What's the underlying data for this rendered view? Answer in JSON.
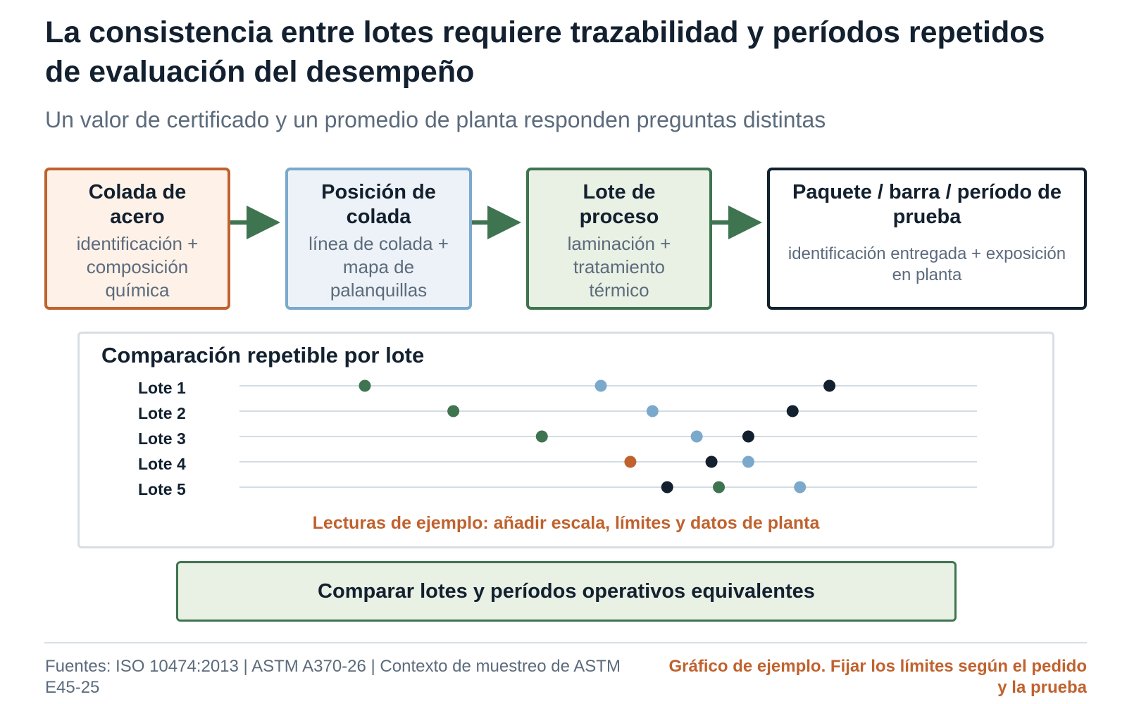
{
  "title": "La consistencia entre lotes requiere trazabilidad y períodos repetidos de evaluación del desempeño",
  "subtitle": "Un valor de certificado y un promedio de planta responden preguntas distintas",
  "colors": {
    "orange": "#c0622e",
    "blue": "#7ba9cc",
    "green": "#3f7450",
    "navy": "#12202f",
    "gray": "#5c6b7c"
  },
  "stages": [
    {
      "head": "Colada de acero",
      "desc": "identificación + composición química"
    },
    {
      "head": "Posición de colada",
      "desc": "línea de colada + mapa de palanquillas"
    },
    {
      "head": "Lote de proceso",
      "desc": "laminación + tratamiento térmico"
    },
    {
      "head": "Paquete / barra / período de prueba",
      "desc": "identificación entregada + exposición en planta"
    }
  ],
  "panel": {
    "title": "Comparación repetible por lote",
    "note": "Lecturas de ejemplo: añadir escala, límites y datos de planta"
  },
  "chart_data": {
    "type": "scatter",
    "title": "Comparación repetible por lote",
    "categories": [
      "Lote 1",
      "Lote 2",
      "Lote 3",
      "Lote 4",
      "Lote 5"
    ],
    "xlim": [
      0,
      100
    ],
    "marker_colors": [
      "green",
      "blue",
      "navy",
      "orange"
    ],
    "points": [
      {
        "lot": "Lote 1",
        "x": 17,
        "color": "green"
      },
      {
        "lot": "Lote 1",
        "x": 49,
        "color": "blue"
      },
      {
        "lot": "Lote 1",
        "x": 80,
        "color": "navy"
      },
      {
        "lot": "Lote 2",
        "x": 29,
        "color": "green"
      },
      {
        "lot": "Lote 2",
        "x": 56,
        "color": "blue"
      },
      {
        "lot": "Lote 2",
        "x": 75,
        "color": "navy"
      },
      {
        "lot": "Lote 3",
        "x": 41,
        "color": "green"
      },
      {
        "lot": "Lote 3",
        "x": 62,
        "color": "blue"
      },
      {
        "lot": "Lote 3",
        "x": 69,
        "color": "navy"
      },
      {
        "lot": "Lote 4",
        "x": 53,
        "color": "orange"
      },
      {
        "lot": "Lote 4",
        "x": 64,
        "color": "navy"
      },
      {
        "lot": "Lote 4",
        "x": 69,
        "color": "blue"
      },
      {
        "lot": "Lote 5",
        "x": 58,
        "color": "navy"
      },
      {
        "lot": "Lote 5",
        "x": 65,
        "color": "green"
      },
      {
        "lot": "Lote 5",
        "x": 76,
        "color": "blue"
      }
    ],
    "grid": true
  },
  "cta": "Comparar lotes y períodos operativos equivalentes",
  "footer": {
    "sources": "Fuentes: ISO 10474:2013 | ASTM A370-26 | Contexto de muestreo de ASTM E45-25",
    "disclaimer": "Gráfico de ejemplo. Fijar los límites según el pedido y la prueba"
  }
}
